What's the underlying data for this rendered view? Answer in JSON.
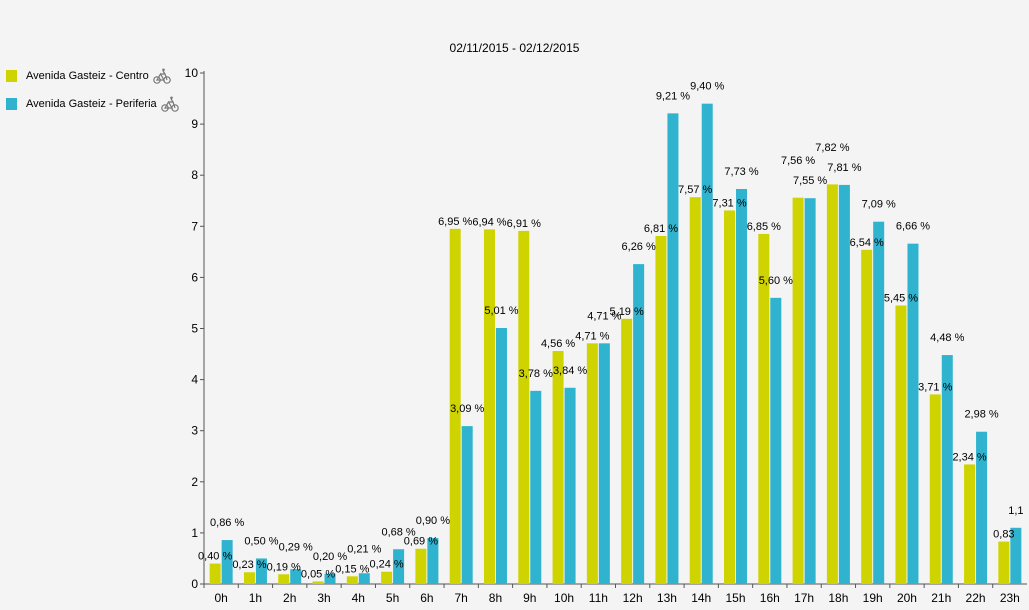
{
  "chart_data": {
    "type": "bar",
    "title": "02/11/2015 - 02/12/2015",
    "xlabel": "",
    "ylabel": "",
    "ylim": [
      0,
      10
    ],
    "yticks": [
      "0",
      "1",
      "2",
      "3",
      "4",
      "5",
      "6",
      "7",
      "8",
      "9",
      "10"
    ],
    "legend_position": "top-left",
    "grid": false,
    "categories": [
      "0h",
      "1h",
      "2h",
      "3h",
      "4h",
      "5h",
      "6h",
      "7h",
      "8h",
      "9h",
      "10h",
      "11h",
      "12h",
      "13h",
      "14h",
      "15h",
      "16h",
      "17h",
      "18h",
      "19h",
      "20h",
      "21h",
      "22h",
      "23h"
    ],
    "series": [
      {
        "name": "Avenida Gasteiz - Centro",
        "color": "#cfd400",
        "values": [
          0.4,
          0.23,
          0.19,
          0.05,
          0.15,
          0.24,
          0.69,
          6.95,
          6.94,
          6.91,
          4.56,
          4.71,
          5.19,
          6.81,
          7.57,
          7.31,
          6.85,
          7.56,
          7.82,
          6.54,
          5.45,
          3.71,
          2.34,
          0.83
        ],
        "labels": [
          "0,40 %",
          "0,23 %",
          "0,19 %",
          "0,05 %",
          "0,15 %",
          "0,24 %",
          "0,69 %",
          "6,95 %",
          "6,94 %",
          "6,91 %",
          "4,56 %",
          "4,71 %",
          "5,19 %",
          "6,81 %",
          "7,57 %",
          "7,31 %",
          "6,85 %",
          "7,56 %",
          "7,82 %",
          "6,54 %",
          "5,45 %",
          "3,71 %",
          "2,34 %",
          "0,83"
        ]
      },
      {
        "name": "Avenida Gasteiz - Periferia",
        "color": "#2fb3cf",
        "values": [
          0.86,
          0.5,
          0.29,
          0.2,
          0.21,
          0.68,
          0.9,
          3.09,
          5.01,
          3.78,
          3.84,
          4.71,
          6.26,
          9.21,
          9.4,
          7.73,
          5.6,
          7.55,
          7.81,
          7.09,
          6.66,
          4.48,
          2.98,
          1.1
        ],
        "labels": [
          "0,86 %",
          "0,50 %",
          "0,29 %",
          "0,20 %",
          "0,21 %",
          "0,68 %",
          "0,90 %",
          "3,09 %",
          "5,01 %",
          "3,78 %",
          "3,84 %",
          "4,71 %",
          "6,26 %",
          "9,21 %",
          "9,40 %",
          "7,73 %",
          "5,60 %",
          "7,55 %",
          "7,81 %",
          "7,09 %",
          "6,66 %",
          "4,48 %",
          "2,98 %",
          "1,1"
        ]
      }
    ]
  },
  "legend": {
    "icon": "bicycle-icon"
  }
}
